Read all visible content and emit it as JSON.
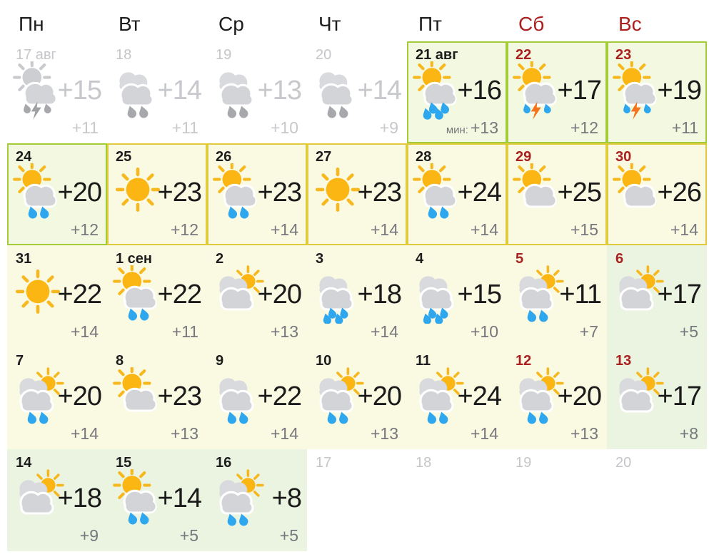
{
  "weekday_header": [
    {
      "label": "Пн",
      "weekend": false
    },
    {
      "label": "Вт",
      "weekend": false
    },
    {
      "label": "Ср",
      "weekend": false
    },
    {
      "label": "Чт",
      "weekend": false
    },
    {
      "label": "Пт",
      "weekend": false
    },
    {
      "label": "Сб",
      "weekend": true
    },
    {
      "label": "Вс",
      "weekend": true
    }
  ],
  "colors": {
    "weekend_red": "#a9201f",
    "border_green": "#a3cb3a",
    "border_yellow": "#dfcb3d",
    "bg_green": "#f3f9e0",
    "bg_yellow": "#faf9e2",
    "bg_soft_green": "#ebf3e1",
    "past_gray": "#c7c8cb",
    "min_temp_gray": "#76777c",
    "sun_gold": "#fbb613",
    "cloud_gray": "#d3d4d8",
    "rain_blue": "#2ea7ef",
    "bolt_orange": "#f4731c"
  },
  "days": [
    {
      "date": "17 авг",
      "style": "past",
      "bg": "white",
      "border": null,
      "icon": "storm-past",
      "tmax": "+15",
      "tmin": "+11"
    },
    {
      "date": "18",
      "style": "past",
      "bg": "white",
      "border": null,
      "icon": "rain-past",
      "tmax": "+14",
      "tmin": "+11"
    },
    {
      "date": "19",
      "style": "past",
      "bg": "white",
      "border": null,
      "icon": "rain-past",
      "tmax": "+13",
      "tmin": "+10"
    },
    {
      "date": "20",
      "style": "past",
      "bg": "white",
      "border": null,
      "icon": "rain-past",
      "tmax": "+14",
      "tmin": "+9"
    },
    {
      "date": "21 авг",
      "style": "day",
      "bg": "green",
      "border": "green",
      "icon": "sun-cloud-rain-heavy",
      "tmax": "+16",
      "tmin": "+13",
      "tmin_label": "мин:"
    },
    {
      "date": "22",
      "style": "weekend",
      "bg": "green",
      "border": "green",
      "icon": "sun-cloud-thunder",
      "tmax": "+17",
      "tmin": "+12"
    },
    {
      "date": "23",
      "style": "weekend",
      "bg": "green",
      "border": "green",
      "icon": "sun-cloud-thunder",
      "tmax": "+19",
      "tmin": "+11"
    },
    {
      "date": "24",
      "style": "day",
      "bg": "green",
      "border": "green",
      "icon": "sun-cloud-rain",
      "tmax": "+20",
      "tmin": "+12"
    },
    {
      "date": "25",
      "style": "day",
      "bg": "yellow",
      "border": "yellow",
      "icon": "sun",
      "tmax": "+23",
      "tmin": "+12"
    },
    {
      "date": "26",
      "style": "day",
      "bg": "yellow",
      "border": "yellow",
      "icon": "sun-cloud-rain",
      "tmax": "+23",
      "tmin": "+14"
    },
    {
      "date": "27",
      "style": "day",
      "bg": "yellow",
      "border": "yellow",
      "icon": "sun",
      "tmax": "+23",
      "tmin": "+14"
    },
    {
      "date": "28",
      "style": "day",
      "bg": "yellow",
      "border": "yellow",
      "icon": "sun-cloud-rain",
      "tmax": "+24",
      "tmin": "+14"
    },
    {
      "date": "29",
      "style": "weekend",
      "bg": "yellow",
      "border": "yellow",
      "icon": "sun-cloud",
      "tmax": "+25",
      "tmin": "+15"
    },
    {
      "date": "30",
      "style": "weekend",
      "bg": "yellow",
      "border": "yellow",
      "icon": "sun-cloud",
      "tmax": "+26",
      "tmin": "+14"
    },
    {
      "date": "31",
      "style": "day",
      "bg": "yellow",
      "border": null,
      "icon": "sun",
      "tmax": "+22",
      "tmin": "+14"
    },
    {
      "date": "1 сен",
      "style": "day",
      "bg": "yellow",
      "border": null,
      "icon": "sun-cloud-rain",
      "tmax": "+22",
      "tmin": "+11"
    },
    {
      "date": "2",
      "style": "day",
      "bg": "yellow",
      "border": null,
      "icon": "clouds-sun",
      "tmax": "+20",
      "tmin": "+13"
    },
    {
      "date": "3",
      "style": "day",
      "bg": "yellow",
      "border": null,
      "icon": "clouds-rain-heavy",
      "tmax": "+18",
      "tmin": "+14"
    },
    {
      "date": "4",
      "style": "day",
      "bg": "yellow",
      "border": null,
      "icon": "clouds-rain-heavy",
      "tmax": "+15",
      "tmin": "+10"
    },
    {
      "date": "5",
      "style": "weekend",
      "bg": "yellow",
      "border": null,
      "icon": "clouds-sun-rain",
      "tmax": "+11",
      "tmin": "+7"
    },
    {
      "date": "6",
      "style": "weekend",
      "bg": "soft",
      "border": null,
      "icon": "clouds-sun",
      "tmax": "+17",
      "tmin": "+5"
    },
    {
      "date": "7",
      "style": "day",
      "bg": "yellow",
      "border": null,
      "icon": "clouds-sun-rain",
      "tmax": "+20",
      "tmin": "+14"
    },
    {
      "date": "8",
      "style": "day",
      "bg": "yellow",
      "border": null,
      "icon": "sun-cloud",
      "tmax": "+23",
      "tmin": "+13"
    },
    {
      "date": "9",
      "style": "day",
      "bg": "yellow",
      "border": null,
      "icon": "clouds-rain",
      "tmax": "+22",
      "tmin": "+14"
    },
    {
      "date": "10",
      "style": "day",
      "bg": "yellow",
      "border": null,
      "icon": "clouds-sun-rain",
      "tmax": "+20",
      "tmin": "+13"
    },
    {
      "date": "11",
      "style": "day",
      "bg": "yellow",
      "border": null,
      "icon": "clouds-sun-rain",
      "tmax": "+24",
      "tmin": "+14"
    },
    {
      "date": "12",
      "style": "weekend",
      "bg": "yellow",
      "border": null,
      "icon": "clouds-sun-rain",
      "tmax": "+20",
      "tmin": "+13"
    },
    {
      "date": "13",
      "style": "weekend",
      "bg": "soft",
      "border": null,
      "icon": "clouds-sun",
      "tmax": "+17",
      "tmin": "+8"
    },
    {
      "date": "14",
      "style": "day",
      "bg": "soft",
      "border": null,
      "icon": "clouds-sun",
      "tmax": "+18",
      "tmin": "+9"
    },
    {
      "date": "15",
      "style": "day",
      "bg": "soft",
      "border": null,
      "icon": "sun-cloud-rain",
      "tmax": "+14",
      "tmin": "+5"
    },
    {
      "date": "16",
      "style": "day",
      "bg": "soft",
      "border": null,
      "icon": "clouds-sun-rain",
      "tmax": "+8",
      "tmin": "+5"
    },
    {
      "date": "17",
      "style": "future",
      "bg": "white",
      "border": null,
      "icon": null,
      "tmax": "",
      "tmin": ""
    },
    {
      "date": "18",
      "style": "future",
      "bg": "white",
      "border": null,
      "icon": null,
      "tmax": "",
      "tmin": ""
    },
    {
      "date": "19",
      "style": "future",
      "bg": "white",
      "border": null,
      "icon": null,
      "tmax": "",
      "tmin": ""
    },
    {
      "date": "20",
      "style": "future",
      "bg": "white",
      "border": null,
      "icon": null,
      "tmax": "",
      "tmin": ""
    }
  ]
}
